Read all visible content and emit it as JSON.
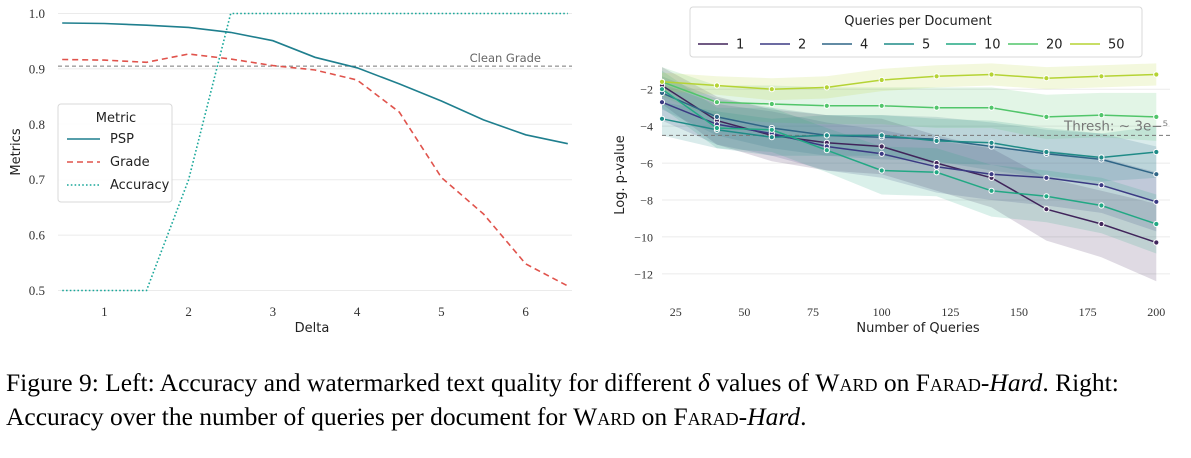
{
  "chart_data": [
    {
      "type": "line",
      "xlabel": "Delta",
      "ylabel": "Metrics",
      "xlim": [
        0.45,
        6.55
      ],
      "ylim": [
        0.49,
        1.01
      ],
      "xticks": [
        "1",
        "2",
        "3",
        "4",
        "5",
        "6"
      ],
      "yticks": [
        "0.5",
        "0.6",
        "0.7",
        "0.8",
        "0.9",
        "1.0"
      ],
      "reference_line": {
        "y": 0.905,
        "label": "Clean Grade"
      },
      "legend": {
        "title": "Metric",
        "position": "center-left"
      },
      "series": [
        {
          "name": "PSP",
          "color": "#1f7f8e",
          "style": "solid",
          "x": [
            0.5,
            1,
            1.5,
            2,
            2.5,
            3,
            3.5,
            4,
            4.5,
            5,
            5.5,
            6,
            6.5
          ],
          "y": [
            0.983,
            0.982,
            0.979,
            0.975,
            0.966,
            0.951,
            0.921,
            0.902,
            0.873,
            0.842,
            0.808,
            0.781,
            0.765
          ]
        },
        {
          "name": "Grade",
          "color": "#e0534c",
          "style": "dashed",
          "x": [
            0.5,
            1,
            1.5,
            2,
            2.5,
            3,
            3.5,
            4,
            4.5,
            5,
            5.5,
            6,
            6.5
          ],
          "y": [
            0.917,
            0.916,
            0.912,
            0.927,
            0.918,
            0.906,
            0.898,
            0.88,
            0.822,
            0.704,
            0.638,
            0.548,
            0.508
          ]
        },
        {
          "name": "Accuracy",
          "color": "#1aa79a",
          "style": "dotted",
          "x": [
            0.5,
            1,
            1.5,
            2,
            2.5,
            3,
            3.5,
            4,
            4.5,
            5,
            5.5,
            6,
            6.5
          ],
          "y": [
            0.5,
            0.5,
            0.5,
            0.7,
            1.0,
            1.0,
            1.0,
            1.0,
            1.0,
            1.0,
            1.0,
            1.0,
            1.0
          ]
        }
      ]
    },
    {
      "type": "line",
      "xlabel": "Number of Queries",
      "ylabel": "Log. p-value",
      "xlim": [
        20,
        205
      ],
      "ylim": [
        -13.2,
        -0.2
      ],
      "xticks": [
        "25",
        "50",
        "75",
        "100",
        "125",
        "150",
        "175",
        "200"
      ],
      "yticks": [
        "-2",
        "-4",
        "-6",
        "-8",
        "-10",
        "-12"
      ],
      "reference_line": {
        "y": -4.5,
        "label": "Thresh: ∼ 3e−⁵"
      },
      "legend": {
        "title": "Queries per Document",
        "position": "top"
      },
      "x": [
        20,
        40,
        60,
        80,
        100,
        120,
        140,
        160,
        180,
        200
      ],
      "series": [
        {
          "name": "1",
          "color": "#40245a",
          "y": [
            -1.8,
            -3.7,
            -4.5,
            -4.9,
            -5.1,
            -6.0,
            -6.8,
            -8.5,
            -9.3,
            -10.3
          ],
          "band": [
            1.0,
            1.3,
            1.4,
            1.5,
            1.5,
            1.5,
            1.6,
            1.7,
            1.8,
            2.1
          ]
        },
        {
          "name": "2",
          "color": "#3b3a83",
          "y": [
            -2.7,
            -3.9,
            -4.4,
            -5.1,
            -5.5,
            -6.2,
            -6.6,
            -6.8,
            -7.2,
            -8.1
          ],
          "band": [
            1.0,
            1.1,
            1.2,
            1.3,
            1.3,
            1.4,
            1.4,
            1.5,
            1.5,
            1.6
          ]
        },
        {
          "name": "4",
          "color": "#2f6586",
          "y": [
            -2.2,
            -3.5,
            -4.1,
            -4.5,
            -4.6,
            -4.7,
            -5.1,
            -5.5,
            -5.8,
            -6.6
          ],
          "band": [
            0.9,
            1.0,
            1.1,
            1.1,
            1.2,
            1.2,
            1.3,
            1.3,
            1.4,
            1.5
          ]
        },
        {
          "name": "5",
          "color": "#1f8b87",
          "y": [
            -3.6,
            -4.2,
            -4.6,
            -4.5,
            -4.5,
            -4.8,
            -4.9,
            -5.4,
            -5.7,
            -5.4
          ],
          "band": [
            0.9,
            1.0,
            1.0,
            1.1,
            1.1,
            1.2,
            1.2,
            1.3,
            1.3,
            1.4
          ]
        },
        {
          "name": "10",
          "color": "#22a884",
          "y": [
            -2.0,
            -4.1,
            -4.2,
            -5.3,
            -6.4,
            -6.5,
            -7.5,
            -7.8,
            -8.3,
            -9.3
          ],
          "band": [
            1.0,
            1.1,
            1.2,
            1.2,
            1.3,
            1.3,
            1.4,
            1.4,
            1.5,
            1.6
          ]
        },
        {
          "name": "20",
          "color": "#51c56a",
          "y": [
            -1.6,
            -2.7,
            -2.8,
            -2.9,
            -2.9,
            -3.0,
            -3.0,
            -3.5,
            -3.4,
            -3.5
          ],
          "band": [
            0.8,
            0.9,
            1.0,
            1.0,
            1.0,
            1.1,
            1.1,
            1.2,
            1.2,
            1.3
          ]
        },
        {
          "name": "50",
          "color": "#b5d334",
          "y": [
            -1.6,
            -1.8,
            -2.0,
            -1.9,
            -1.5,
            -1.3,
            -1.2,
            -1.4,
            -1.3,
            -1.2
          ],
          "band": [
            0.5,
            0.5,
            0.6,
            0.6,
            0.6,
            0.6,
            0.6,
            0.6,
            0.6,
            0.6
          ]
        }
      ]
    }
  ],
  "caption": {
    "label": "Figure 9: Left: Accuracy and watermarked text quality for different",
    "delta": "δ",
    "values_of": "values of",
    "method": "Ward",
    "on": "on",
    "dataset": "Farad-",
    "variant": "Hard",
    "right": ". Right: Accuracy over the number of queries per document for",
    "method2": "Ward",
    "on2": "on",
    "dataset2": "Farad-",
    "variant2": "Hard",
    "end": "."
  }
}
